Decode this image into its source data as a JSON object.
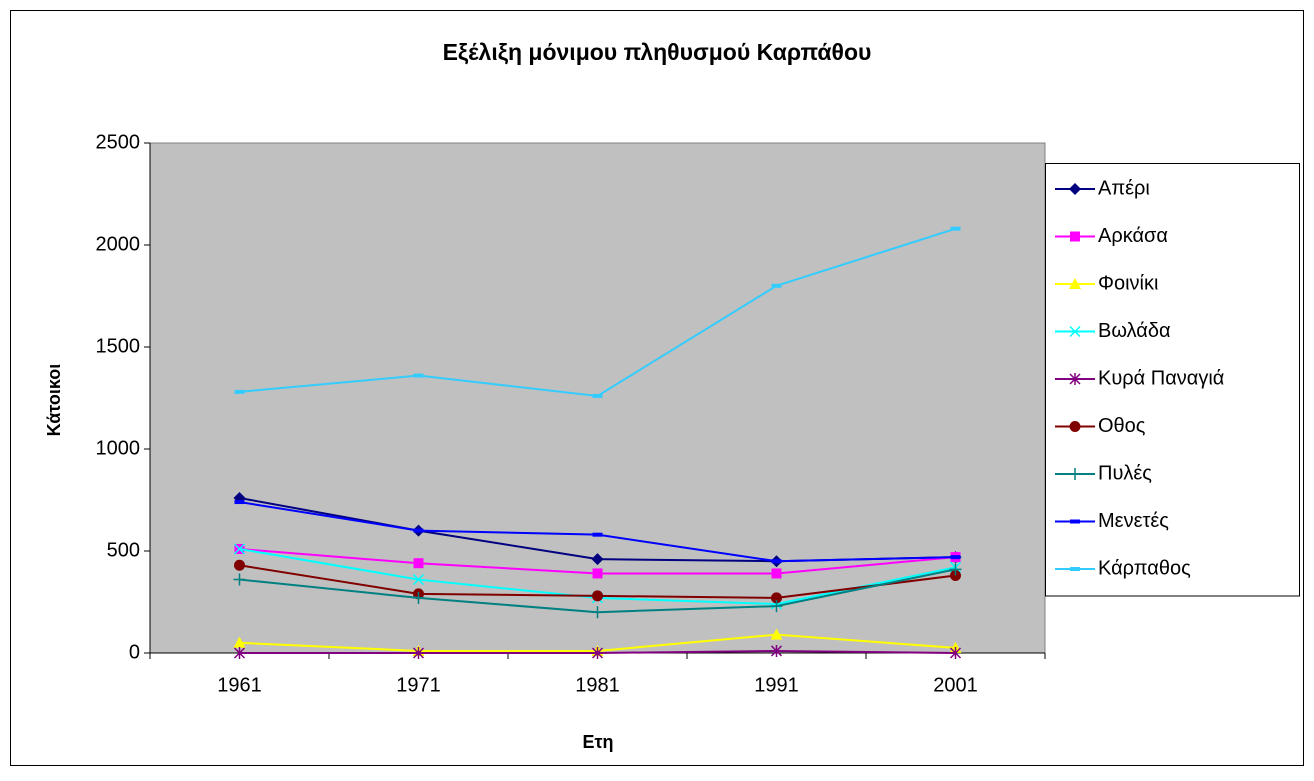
{
  "chart_data": {
    "type": "line",
    "title": "Εξέλιξη μόνιμου πληθυσμού Καρπάθου",
    "x_label": "Ετη",
    "y_label": "Κάτοικοι",
    "categories": [
      "1961",
      "1971",
      "1981",
      "1991",
      "2001"
    ],
    "ylim": [
      0,
      2500
    ],
    "yticks": [
      0,
      500,
      1000,
      1500,
      2000,
      2500
    ],
    "plot_background": "#c0c0c0",
    "legend": "right",
    "series": [
      {
        "name": "Απέρι",
        "color": "#000080",
        "marker": "diamond",
        "values": [
          760,
          600,
          460,
          450,
          470
        ]
      },
      {
        "name": "Αρκάσα",
        "color": "#ff00ff",
        "marker": "square",
        "values": [
          510,
          440,
          390,
          390,
          470
        ]
      },
      {
        "name": "Φοινίκι",
        "color": "#ffff00",
        "marker": "triangle",
        "values": [
          50,
          10,
          10,
          90,
          25
        ]
      },
      {
        "name": "Βωλάδα",
        "color": "#00ffff",
        "marker": "x",
        "values": [
          510,
          360,
          270,
          240,
          420
        ]
      },
      {
        "name": "Κυρά Παναγιά",
        "color": "#800080",
        "marker": "star",
        "values": [
          0,
          0,
          0,
          10,
          0
        ]
      },
      {
        "name": "Οθος",
        "color": "#800000",
        "marker": "circle",
        "values": [
          430,
          290,
          280,
          270,
          380
        ]
      },
      {
        "name": "Πυλές",
        "color": "#008080",
        "marker": "plus",
        "values": [
          360,
          270,
          200,
          230,
          410
        ]
      },
      {
        "name": "Μενετές",
        "color": "#0000ff",
        "marker": "dash",
        "values": [
          740,
          600,
          580,
          450,
          470
        ]
      },
      {
        "name": "Κάρπαθος",
        "color": "#33ccff",
        "marker": "dash",
        "values": [
          1280,
          1360,
          1260,
          1800,
          2080
        ]
      }
    ]
  }
}
